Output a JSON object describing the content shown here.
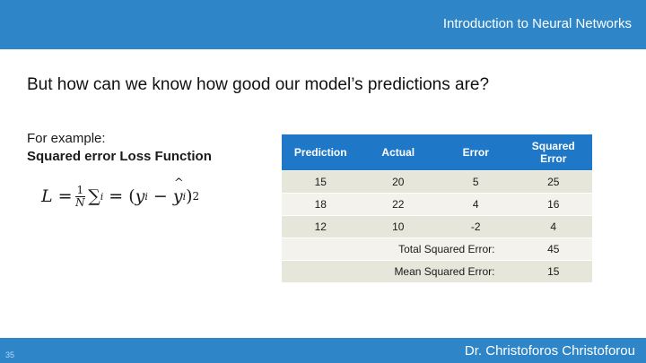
{
  "header": {
    "course_title": "Introduction to Neural Networks"
  },
  "slide": {
    "heading": "But how can we know how good our model’s predictions are?",
    "example_label": "For example:",
    "loss_name": "Squared error Loss Function",
    "formula": {
      "lhs": "L",
      "eq": "=",
      "frac_num": "1",
      "frac_den": "N",
      "sum": "∑",
      "sum_sub": "i",
      "eq2": "=",
      "open": "(",
      "y": "y",
      "y_sub": "i",
      "minus": "−",
      "yhat": "y",
      "yhat_sub": "i",
      "close": ")",
      "power": "2"
    }
  },
  "table": {
    "headers": [
      "Prediction",
      "Actual",
      "Error",
      "Squared Error"
    ],
    "rows": [
      [
        "15",
        "20",
        "5",
        "25"
      ],
      [
        "18",
        "22",
        "4",
        "16"
      ],
      [
        "12",
        "10",
        "-2",
        "4"
      ]
    ],
    "summary": [
      {
        "label": "Total Squared Error:",
        "value": "45"
      },
      {
        "label": "Mean Squared Error:",
        "value": "15"
      }
    ]
  },
  "footer": {
    "author": "Dr. Christoforos Christoforou",
    "page_number": "35"
  },
  "colors": {
    "banner": "#2e86c9",
    "table_header": "#1f78c7",
    "row_odd": "#e7e6da",
    "row_even": "#f3f2ec"
  }
}
